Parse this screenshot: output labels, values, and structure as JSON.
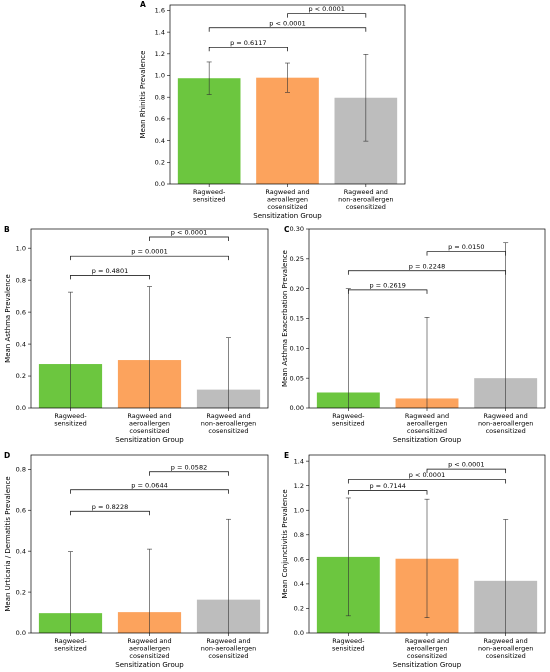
{
  "figure": {
    "colors": {
      "green": "#6cc63f",
      "orange": "#fca35d",
      "gray": "#bdbdbd"
    }
  },
  "chart_data": [
    {
      "id": "A",
      "type": "bar",
      "categories": [
        [
          "Ragweed-",
          "sensitized"
        ],
        [
          "Ragweed and",
          "aeroallergen",
          "cosensitized"
        ],
        [
          "Ragweed and",
          "non-aeroallergen",
          "cosensitized"
        ]
      ],
      "values": [
        0.975,
        0.98,
        0.795
      ],
      "err_low": [
        0.825,
        0.845,
        0.395
      ],
      "err_high": [
        1.125,
        1.115,
        1.195
      ],
      "ylabel": "Mean Rhinitis Prevalence",
      "xlabel": "Sensitization Group",
      "ylim": [
        0,
        1.65
      ],
      "yticks": [
        "0.0",
        "0.2",
        "0.4",
        "0.6",
        "0.8",
        "1.0",
        "1.2",
        "1.4",
        "1.6"
      ],
      "comparisons": [
        {
          "from": 0,
          "to": 1,
          "y": 1.26,
          "label": "p = 0.6117"
        },
        {
          "from": 0,
          "to": 2,
          "y": 1.44,
          "label": "p < 0.0001"
        },
        {
          "from": 1,
          "to": 2,
          "y": 1.57,
          "label": "p < 0.0001"
        }
      ]
    },
    {
      "id": "B",
      "type": "bar",
      "categories": [
        [
          "Ragweed-",
          "sensitized"
        ],
        [
          "Ragweed and",
          "aeroallergen",
          "cosensitized"
        ],
        [
          "Ragweed and",
          "non-aeroallergen",
          "cosensitized"
        ]
      ],
      "values": [
        0.275,
        0.3,
        0.115
      ],
      "err_low": [
        0.0,
        0.0,
        0.0
      ],
      "err_high": [
        0.725,
        0.76,
        0.44
      ],
      "ylabel": "Mean Asthma Prevalence",
      "xlabel": "Sensitization Group",
      "ylim": [
        0,
        1.12
      ],
      "yticks": [
        "0.0",
        "0.2",
        "0.4",
        "0.6",
        "0.8",
        "1.0"
      ],
      "comparisons": [
        {
          "from": 0,
          "to": 1,
          "y": 0.83,
          "label": "p = 0.4801"
        },
        {
          "from": 0,
          "to": 2,
          "y": 0.95,
          "label": "p = 0.0001"
        },
        {
          "from": 1,
          "to": 2,
          "y": 1.07,
          "label": "p < 0.0001"
        }
      ]
    },
    {
      "id": "C",
      "type": "bar",
      "categories": [
        [
          "Ragweed-",
          "sensitized"
        ],
        [
          "Ragweed and",
          "aeroallergen",
          "cosensitized"
        ],
        [
          "Ragweed and",
          "non-aeroallergen",
          "cosensitized"
        ]
      ],
      "values": [
        0.026,
        0.016,
        0.05
      ],
      "err_low": [
        0.0,
        0.0,
        0.0
      ],
      "err_high": [
        0.2,
        0.152,
        0.277
      ],
      "ylabel": "Mean Asthma Exacerbation Prevalence",
      "xlabel": "Sensitization Group",
      "ylim": [
        0,
        0.3
      ],
      "yticks": [
        "0.00",
        "0.05",
        "0.10",
        "0.15",
        "0.20",
        "0.25",
        "0.30"
      ],
      "comparisons": [
        {
          "from": 0,
          "to": 1,
          "y": 0.198,
          "label": "p = 0.2619"
        },
        {
          "from": 0,
          "to": 2,
          "y": 0.23,
          "label": "p = 0.2248"
        },
        {
          "from": 1,
          "to": 2,
          "y": 0.262,
          "label": "p = 0.0150"
        }
      ]
    },
    {
      "id": "D",
      "type": "bar",
      "categories": [
        [
          "Ragweed-",
          "sensitized"
        ],
        [
          "Ragweed and",
          "aeroallergen",
          "cosensitized"
        ],
        [
          "Ragweed and",
          "non-aeroallergen",
          "cosensitized"
        ]
      ],
      "values": [
        0.097,
        0.102,
        0.163
      ],
      "err_low": [
        0.0,
        0.0,
        0.0
      ],
      "err_high": [
        0.398,
        0.41,
        0.556
      ],
      "ylabel": "Mean Urticaria / Dermatitis Prevalence",
      "xlabel": "Sensitization Group",
      "ylim": [
        0,
        0.87
      ],
      "yticks": [
        "0.0",
        "0.2",
        "0.4",
        "0.6",
        "0.8"
      ],
      "comparisons": [
        {
          "from": 0,
          "to": 1,
          "y": 0.595,
          "label": "p = 0.8228"
        },
        {
          "from": 0,
          "to": 2,
          "y": 0.7,
          "label": "p = 0.0644"
        },
        {
          "from": 1,
          "to": 2,
          "y": 0.788,
          "label": "p = 0.0582"
        }
      ]
    },
    {
      "id": "E",
      "type": "bar",
      "categories": [
        [
          "Ragweed-",
          "sensitized"
        ],
        [
          "Ragweed and",
          "aeroallergen",
          "cosensitized"
        ],
        [
          "Ragweed and",
          "non-aeroallergen",
          "cosensitized"
        ]
      ],
      "values": [
        0.62,
        0.605,
        0.425
      ],
      "err_low": [
        0.14,
        0.125,
        0.0
      ],
      "err_high": [
        1.1,
        1.09,
        0.925
      ],
      "ylabel": "Mean Conjunctivitis Prevalence",
      "xlabel": "Sensitization Group",
      "ylim": [
        0,
        1.45
      ],
      "yticks": [
        "0.0",
        "0.2",
        "0.4",
        "0.6",
        "0.8",
        "1.0",
        "1.2",
        "1.4"
      ],
      "comparisons": [
        {
          "from": 0,
          "to": 1,
          "y": 1.16,
          "label": "p = 0.7144"
        },
        {
          "from": 0,
          "to": 2,
          "y": 1.25,
          "label": "p < 0.0001"
        },
        {
          "from": 1,
          "to": 2,
          "y": 1.335,
          "label": "p < 0.0001"
        }
      ]
    }
  ]
}
